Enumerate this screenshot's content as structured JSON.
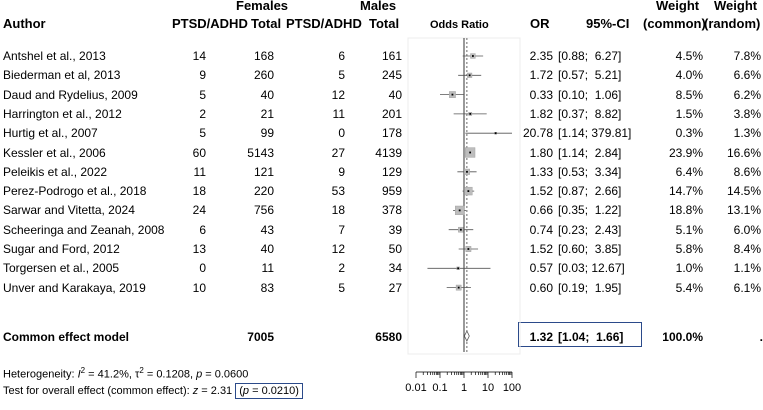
{
  "headers": {
    "females": "Females",
    "males": "Males",
    "weight_top1": "Weight",
    "weight_top2": "Weight",
    "author": "Author",
    "f_events": "PTSD/ADHD",
    "f_total": "Total",
    "m_events": "PTSD/ADHD",
    "m_total": "Total",
    "odds_ratio": "Odds Ratio",
    "or": "OR",
    "ci": "95%-CI",
    "w_common": "(common)",
    "w_random": "(random)"
  },
  "chart_data": {
    "type": "forest",
    "x_scale": "log",
    "xlim": [
      0.01,
      100
    ],
    "ticks": [
      "0.01",
      "0.1",
      "1",
      "10",
      "100"
    ],
    "reference_line": 1,
    "studies": [
      {
        "author": "Antshel et al., 2013",
        "f_events": "14",
        "f_total": "168",
        "m_events": "6",
        "m_total": "161",
        "or_text": "2.35",
        "ci_text": "[0.88;  6.27]",
        "w_common_text": "4.5%",
        "w_random_text": "7.8%",
        "or": 2.35,
        "lo": 0.88,
        "hi": 6.27,
        "w": 4.5
      },
      {
        "author": "Biederman et al, 2013",
        "f_events": "9",
        "f_total": "260",
        "m_events": "5",
        "m_total": "245",
        "or_text": "1.72",
        "ci_text": "[0.57;  5.21]",
        "w_common_text": "4.0%",
        "w_random_text": "6.6%",
        "or": 1.72,
        "lo": 0.57,
        "hi": 5.21,
        "w": 4.0
      },
      {
        "author": "Daud and Rydelius, 2009",
        "f_events": "5",
        "f_total": "40",
        "m_events": "12",
        "m_total": "40",
        "or_text": "0.33",
        "ci_text": "[0.10;  1.06]",
        "w_common_text": "8.5%",
        "w_random_text": "6.2%",
        "or": 0.33,
        "lo": 0.1,
        "hi": 1.06,
        "w": 8.5
      },
      {
        "author": "Harrington et al., 2012",
        "f_events": "2",
        "f_total": "21",
        "m_events": "11",
        "m_total": "201",
        "or_text": "1.82",
        "ci_text": "[0.37;  8.82]",
        "w_common_text": "1.5%",
        "w_random_text": "3.8%",
        "or": 1.82,
        "lo": 0.37,
        "hi": 8.82,
        "w": 1.5
      },
      {
        "author": "Hurtig et al., 2007",
        "f_events": "5",
        "f_total": "99",
        "m_events": "0",
        "m_total": "178",
        "or_text": "20.78",
        "ci_text": "[1.14; 379.81]",
        "w_common_text": "0.3%",
        "w_random_text": "1.3%",
        "or": 20.78,
        "lo": 1.14,
        "hi": 379.81,
        "w": 0.3
      },
      {
        "author": "Kessler et al., 2006",
        "f_events": "60",
        "f_total": "5143",
        "m_events": "27",
        "m_total": "4139",
        "or_text": "1.80",
        "ci_text": "[1.14;  2.84]",
        "w_common_text": "23.9%",
        "w_random_text": "16.6%",
        "or": 1.8,
        "lo": 1.14,
        "hi": 2.84,
        "w": 23.9
      },
      {
        "author": "Peleikis et al., 2022",
        "f_events": "11",
        "f_total": "121",
        "m_events": "9",
        "m_total": "129",
        "or_text": "1.33",
        "ci_text": "[0.53;  3.34]",
        "w_common_text": "6.4%",
        "w_random_text": "8.6%",
        "or": 1.33,
        "lo": 0.53,
        "hi": 3.34,
        "w": 6.4
      },
      {
        "author": "Perez-Podrogo et al., 2018",
        "f_events": "18",
        "f_total": "220",
        "m_events": "53",
        "m_total": "959",
        "or_text": "1.52",
        "ci_text": "[0.87;  2.66]",
        "w_common_text": "14.7%",
        "w_random_text": "14.5%",
        "or": 1.52,
        "lo": 0.87,
        "hi": 2.66,
        "w": 14.7
      },
      {
        "author": "Sarwar and Vitetta, 2024",
        "f_events": "24",
        "f_total": "756",
        "m_events": "18",
        "m_total": "378",
        "or_text": "0.66",
        "ci_text": "[0.35;  1.22]",
        "w_common_text": "18.8%",
        "w_random_text": "13.1%",
        "or": 0.66,
        "lo": 0.35,
        "hi": 1.22,
        "w": 18.8
      },
      {
        "author": "Scheeringa and Zeanah, 2008",
        "f_events": "6",
        "f_total": "43",
        "m_events": "7",
        "m_total": "39",
        "or_text": "0.74",
        "ci_text": "[0.23;  2.43]",
        "w_common_text": "5.1%",
        "w_random_text": "6.0%",
        "or": 0.74,
        "lo": 0.23,
        "hi": 2.43,
        "w": 5.1
      },
      {
        "author": "Sugar and Ford, 2012",
        "f_events": "13",
        "f_total": "40",
        "m_events": "12",
        "m_total": "50",
        "or_text": "1.52",
        "ci_text": "[0.60;  3.85]",
        "w_common_text": "5.8%",
        "w_random_text": "8.4%",
        "or": 1.52,
        "lo": 0.6,
        "hi": 3.85,
        "w": 5.8
      },
      {
        "author": "Torgersen et al., 2005",
        "f_events": "0",
        "f_total": "11",
        "m_events": "2",
        "m_total": "34",
        "or_text": "0.57",
        "ci_text": "[0.03; 12.67]",
        "w_common_text": "1.0%",
        "w_random_text": "1.1%",
        "or": 0.57,
        "lo": 0.03,
        "hi": 12.67,
        "w": 1.0
      },
      {
        "author": "Unver and Karakaya, 2019",
        "f_events": "10",
        "f_total": "83",
        "m_events": "5",
        "m_total": "27",
        "or_text": "0.60",
        "ci_text": "[0.19;  1.95]",
        "w_common_text": "5.4%",
        "w_random_text": "6.1%",
        "or": 0.6,
        "lo": 0.19,
        "hi": 1.95,
        "w": 5.4
      }
    ],
    "summary": {
      "label": "Common effect model",
      "f_total": "7005",
      "m_total": "6580",
      "or_text": "1.32",
      "ci_text": "[1.04;  1.66]",
      "w_common_text": "100.0%",
      "w_random_text": ".",
      "or": 1.32,
      "lo": 1.04,
      "hi": 1.66
    }
  },
  "footer": {
    "het_prefix": "Heterogeneity: ",
    "het_i": "I",
    "het_i_sup": "2",
    "het_mid1": " = 41.2%, ",
    "het_tau": "τ",
    "het_tau_sup": "2",
    "het_mid2": " = 0.1208, ",
    "het_p": "p",
    "het_end": " = 0.0600",
    "test_prefix": "Test for overall effect (common effect): ",
    "test_z": "z",
    "test_mid": " = 2.31 ",
    "test_p_open": "(",
    "test_p": "p",
    "test_p_end": " = 0.0210)"
  }
}
